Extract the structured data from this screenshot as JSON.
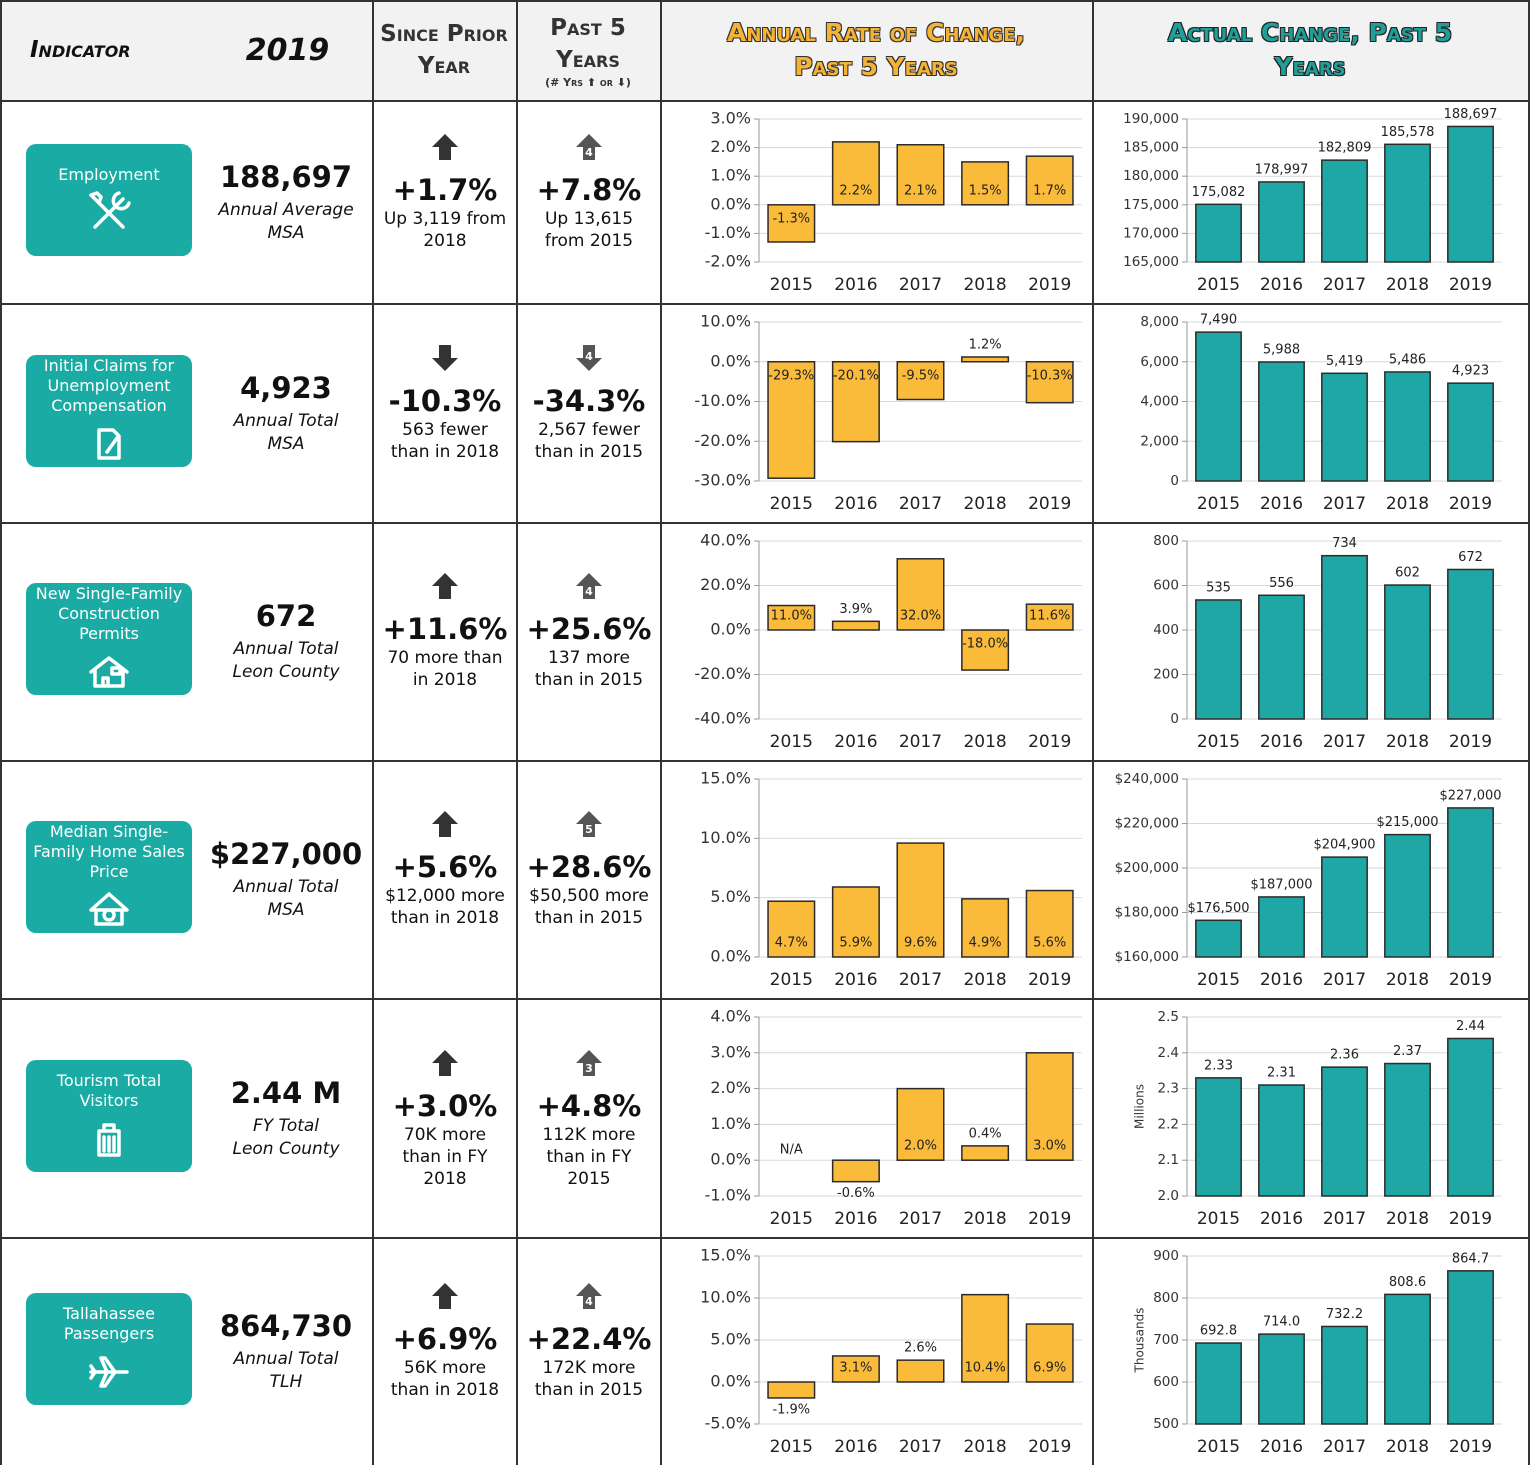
{
  "header": {
    "indicator": "Indicator",
    "year": "2019",
    "since": "Since Prior Year",
    "past": "Past 5 Years",
    "past_note": "(# Yrs ⬆ or ⬇)",
    "rate": "Annual Rate of Change, Past 5 Years",
    "actual": "Actual Change, Past 5 Years"
  },
  "rows": [
    {
      "name": "Employment",
      "value": "188,697",
      "basis": "Annual Average",
      "area": "MSA",
      "direction": "up",
      "since_change": "+1.7%",
      "since_note": "Up 3,119 from 2018",
      "past_change": "+7.8%",
      "past_years": 4,
      "past_note": "Up 13,615 from 2015",
      "rate_chart": {
        "type": "bar",
        "categories": [
          "2015",
          "2016",
          "2017",
          "2018",
          "2019"
        ],
        "values": [
          -1.3,
          2.2,
          2.1,
          1.5,
          1.7
        ],
        "value_labels": [
          "-1.3%",
          "2.2%",
          "2.1%",
          "1.5%",
          "1.7%"
        ],
        "ylim": [
          -2,
          3
        ],
        "yticks": [
          {
            "value": -2,
            "label": "-2.0%"
          },
          {
            "value": -1,
            "label": "-1.0%"
          },
          {
            "value": 0,
            "label": "0.0%"
          },
          {
            "value": 1,
            "label": "1.0%"
          },
          {
            "value": 2,
            "label": "2.0%"
          },
          {
            "value": 3,
            "label": "3.0%"
          }
        ],
        "grid": true,
        "color": "#fbbb3a"
      },
      "actual_chart": {
        "type": "bar",
        "categories": [
          "2015",
          "2016",
          "2017",
          "2018",
          "2019"
        ],
        "values": [
          175082,
          178997,
          182809,
          185578,
          188697
        ],
        "value_labels": [
          "175,082",
          "178,997",
          "182,809",
          "185,578",
          "188,697"
        ],
        "ylim": [
          165000,
          190000
        ],
        "yticks": [
          {
            "value": 165000,
            "label": "165,000"
          },
          {
            "value": 170000,
            "label": "170,000"
          },
          {
            "value": 175000,
            "label": "175,000"
          },
          {
            "value": 180000,
            "label": "180,000"
          },
          {
            "value": 185000,
            "label": "185,000"
          },
          {
            "value": 190000,
            "label": "190,000"
          }
        ],
        "grid": true,
        "color": "#1fa7a5"
      }
    },
    {
      "name": "Initial Claims for Unemployment Compensation",
      "value": "4,923",
      "basis": "Annual Total",
      "area": "MSA",
      "direction": "down",
      "since_change": "-10.3%",
      "since_note": "563 fewer than in 2018",
      "past_change": "-34.3%",
      "past_years": 4,
      "past_note": "2,567 fewer than in 2015",
      "rate_chart": {
        "type": "bar",
        "categories": [
          "2015",
          "2016",
          "2017",
          "2018",
          "2019"
        ],
        "values": [
          -29.3,
          -20.1,
          -9.5,
          1.2,
          -10.3
        ],
        "value_labels": [
          "-29.3%",
          "-20.1%",
          "-9.5%",
          "1.2%",
          "-10.3%"
        ],
        "ylim": [
          -30,
          10
        ],
        "yticks": [
          {
            "value": -30,
            "label": "-30.0%"
          },
          {
            "value": -20,
            "label": "-20.0%"
          },
          {
            "value": -10,
            "label": "-10.0%"
          },
          {
            "value": 0,
            "label": "0.0%"
          },
          {
            "value": 10,
            "label": "10.0%"
          }
        ],
        "grid": true,
        "color": "#fbbb3a"
      },
      "actual_chart": {
        "type": "bar",
        "categories": [
          "2015",
          "2016",
          "2017",
          "2018",
          "2019"
        ],
        "values": [
          7490,
          5988,
          5419,
          5486,
          4923
        ],
        "value_labels": [
          "7,490",
          "5,988",
          "5,419",
          "5,486",
          "4,923"
        ],
        "ylim": [
          0,
          8000
        ],
        "yticks": [
          0,
          {
            "value": 2000,
            "label": "2,000"
          },
          {
            "value": 4000,
            "label": "4,000"
          },
          {
            "value": 6000,
            "label": "6,000"
          },
          {
            "value": 8000,
            "label": "8,000"
          }
        ],
        "grid": true,
        "color": "#1fa7a5"
      }
    },
    {
      "name": "New Single-Family Construction Permits",
      "value": "672",
      "basis": "Annual Total",
      "area": "Leon County",
      "direction": "up",
      "since_change": "+11.6%",
      "since_note": "70 more than in 2018",
      "past_change": "+25.6%",
      "past_years": 4,
      "past_note": "137 more than in 2015",
      "rate_chart": {
        "type": "bar",
        "categories": [
          "2015",
          "2016",
          "2017",
          "2018",
          "2019"
        ],
        "values": [
          11.0,
          3.9,
          32.0,
          -18.0,
          11.6
        ],
        "value_labels": [
          "11.0%",
          "3.9%",
          "32.0%",
          "-18.0%",
          "11.6%"
        ],
        "ylim": [
          -40,
          40
        ],
        "yticks": [
          {
            "value": -40,
            "label": "-40.0%"
          },
          {
            "value": -20,
            "label": "-20.0%"
          },
          {
            "value": 0,
            "label": "0.0%"
          },
          {
            "value": 20,
            "label": "20.0%"
          },
          {
            "value": 40,
            "label": "40.0%"
          }
        ],
        "grid": true,
        "color": "#fbbb3a"
      },
      "actual_chart": {
        "type": "bar",
        "categories": [
          "2015",
          "2016",
          "2017",
          "2018",
          "2019"
        ],
        "values": [
          535,
          556,
          734,
          602,
          672
        ],
        "ylim": [
          0,
          800
        ],
        "yticks": [
          0,
          200,
          400,
          600,
          800
        ],
        "grid": true,
        "color": "#1fa7a5"
      }
    },
    {
      "name": "Median Single-Family Home Sales Price",
      "value": "$227,000",
      "basis": "Annual Total",
      "area": "MSA",
      "direction": "up",
      "since_change": "+5.6%",
      "since_note": "$12,000 more than in 2018",
      "past_change": "+28.6%",
      "past_years": 5,
      "past_note": "$50,500 more than in 2015",
      "rate_chart": {
        "type": "bar",
        "categories": [
          "2015",
          "2016",
          "2017",
          "2018",
          "2019"
        ],
        "values": [
          4.7,
          5.9,
          9.6,
          4.9,
          5.6
        ],
        "value_labels": [
          "4.7%",
          "5.9%",
          "9.6%",
          "4.9%",
          "5.6%"
        ],
        "ylim": [
          0,
          15
        ],
        "yticks": [
          {
            "value": 0,
            "label": "0.0%"
          },
          {
            "value": 5,
            "label": "5.0%"
          },
          {
            "value": 10,
            "label": "10.0%"
          },
          {
            "value": 15,
            "label": "15.0%"
          }
        ],
        "grid": true,
        "color": "#fbbb3a"
      },
      "actual_chart": {
        "type": "bar",
        "categories": [
          "2015",
          "2016",
          "2017",
          "2018",
          "2019"
        ],
        "values": [
          176500,
          187000,
          204900,
          215000,
          227000
        ],
        "value_labels": [
          "$176,500",
          "$187,000",
          "$204,900",
          "$215,000",
          "$227,000"
        ],
        "ylim": [
          160000,
          240000
        ],
        "yticks": [
          {
            "value": 160000,
            "label": "$160,000"
          },
          {
            "value": 180000,
            "label": "$180,000"
          },
          {
            "value": 200000,
            "label": "$200,000"
          },
          {
            "value": 220000,
            "label": "$220,000"
          },
          {
            "value": 240000,
            "label": "$240,000"
          }
        ],
        "grid": true,
        "color": "#1fa7a5"
      }
    },
    {
      "name": "Tourism Total Visitors",
      "value": "2.44 M",
      "basis": "FY Total",
      "area": "Leon County",
      "direction": "up",
      "since_change": "+3.0%",
      "since_note": "70K more than in FY 2018",
      "past_change": "+4.8%",
      "past_years": 3,
      "past_note": "112K more than in FY 2015",
      "rate_chart": {
        "type": "bar",
        "categories": [
          "2015",
          "2016",
          "2017",
          "2018",
          "2019"
        ],
        "values": [
          null,
          -0.6,
          2.0,
          0.4,
          3.0
        ],
        "value_labels": [
          "N/A",
          "-0.6%",
          "2.0%",
          "0.4%",
          "3.0%"
        ],
        "ylim": [
          -1,
          4
        ],
        "yticks": [
          {
            "value": -1,
            "label": "-1.0%"
          },
          {
            "value": 0,
            "label": "0.0%"
          },
          {
            "value": 1,
            "label": "1.0%"
          },
          {
            "value": 2,
            "label": "2.0%"
          },
          {
            "value": 3,
            "label": "3.0%"
          },
          {
            "value": 4,
            "label": "4.0%"
          }
        ],
        "grid": true,
        "color": "#fbbb3a"
      },
      "actual_chart": {
        "type": "bar",
        "y_label": "Millions",
        "categories": [
          "2015",
          "2016",
          "2017",
          "2018",
          "2019"
        ],
        "values": [
          2.33,
          2.31,
          2.36,
          2.37,
          2.44
        ],
        "ylim": [
          2.0,
          2.5
        ],
        "yticks": [
          {
            "value": 2.0,
            "label": "2.0"
          },
          2.1,
          2.2,
          2.3,
          2.4,
          {
            "value": 2.5,
            "label": "2.5"
          }
        ],
        "grid": true,
        "color": "#1fa7a5"
      }
    },
    {
      "name": "Tallahassee Passengers",
      "value": "864,730",
      "basis": "Annual Total",
      "area": "TLH",
      "direction": "up",
      "since_change": "+6.9%",
      "since_note": "56K more than in 2018",
      "past_change": "+22.4%",
      "past_years": 4,
      "past_note": "172K more than in 2015",
      "rate_chart": {
        "type": "bar",
        "categories": [
          "2015",
          "2016",
          "2017",
          "2018",
          "2019"
        ],
        "values": [
          -1.9,
          3.1,
          2.6,
          10.4,
          6.9
        ],
        "value_labels": [
          "-1.9%",
          "3.1%",
          "2.6%",
          "10.4%",
          "6.9%"
        ],
        "ylim": [
          -5,
          15
        ],
        "yticks": [
          {
            "value": -5,
            "label": "-5.0%"
          },
          {
            "value": 0,
            "label": "0.0%"
          },
          {
            "value": 5,
            "label": "5.0%"
          },
          {
            "value": 10,
            "label": "10.0%"
          },
          {
            "value": 15,
            "label": "15.0%"
          }
        ],
        "grid": true,
        "color": "#fbbb3a"
      },
      "actual_chart": {
        "type": "bar",
        "y_label": "Thousands",
        "categories": [
          "2015",
          "2016",
          "2017",
          "2018",
          "2019"
        ],
        "values": [
          692.8,
          714.0,
          732.2,
          808.6,
          864.7
        ],
        "value_labels": [
          "692.8",
          "714.0",
          "732.2",
          "808.6",
          "864.7"
        ],
        "ylim": [
          500,
          900
        ],
        "yticks": [
          500,
          600,
          700,
          800,
          900
        ],
        "grid": true,
        "color": "#1fa7a5"
      }
    }
  ]
}
